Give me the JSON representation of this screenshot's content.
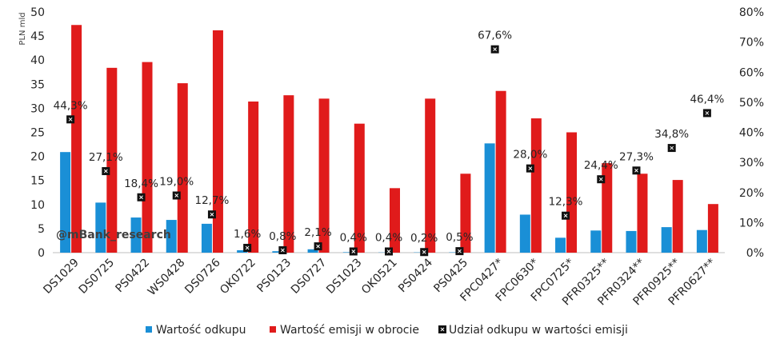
{
  "chart_data": {
    "type": "bar",
    "categories": [
      "DS1029",
      "DS0725",
      "PS0422",
      "WS0428",
      "DS0726",
      "OK0722",
      "PS0123",
      "DS0727",
      "DS1023",
      "OK0521",
      "PS0424",
      "PS0425",
      "FPC0427*",
      "FPC0630*",
      "FPC0725*",
      "PFR0325**",
      "PFR0324**",
      "PFR0925**",
      "PFR0627**"
    ],
    "series": [
      {
        "name": "Wartość odkupu",
        "axis": "left",
        "color": "#1a8fd6",
        "values": [
          20.9,
          10.4,
          7.3,
          6.8,
          6.0,
          0.5,
          0.3,
          0.7,
          0.1,
          0.05,
          0.06,
          0.08,
          22.7,
          7.9,
          3.1,
          4.6,
          4.5,
          5.3,
          4.7
        ]
      },
      {
        "name": "Wartość emisji w obrocie",
        "axis": "left",
        "color": "#e01b1b",
        "values": [
          47.3,
          38.4,
          39.6,
          35.2,
          46.2,
          31.4,
          32.7,
          32.0,
          26.8,
          13.4,
          32.0,
          16.4,
          33.6,
          27.9,
          25.0,
          18.6,
          16.4,
          15.1,
          10.1
        ]
      },
      {
        "name": "Udział odkupu w wartości emisji",
        "axis": "right",
        "type": "scatter",
        "color": "#000000",
        "values": [
          44.3,
          27.1,
          18.4,
          19.0,
          12.7,
          1.6,
          0.8,
          2.1,
          0.4,
          0.4,
          0.2,
          0.5,
          67.6,
          28.0,
          12.3,
          24.4,
          27.3,
          34.8,
          46.4
        ],
        "labels": [
          "44,3%",
          "27,1%",
          "18,4%",
          "19,0%",
          "12,7%",
          "1,6%",
          "0,8%",
          "2,1%",
          "0,4%",
          "0,4%",
          "0,2%",
          "0,5%",
          "67,6%",
          "28,0%",
          "12,3%",
          "24,4%",
          "27,3%",
          "34,8%",
          "46,4%"
        ]
      }
    ],
    "ylabel": "PLN mld",
    "ylim": [
      0,
      50
    ],
    "yticks": [
      "0",
      "5",
      "10",
      "15",
      "20",
      "25",
      "30",
      "35",
      "40",
      "45",
      "50"
    ],
    "y2lim": [
      0,
      80
    ],
    "y2ticks": [
      "0%",
      "10%",
      "20%",
      "30%",
      "40%",
      "50%",
      "60%",
      "70%",
      "80%"
    ],
    "grid": false,
    "legend": "bottom",
    "watermark": "@mBank_research"
  }
}
